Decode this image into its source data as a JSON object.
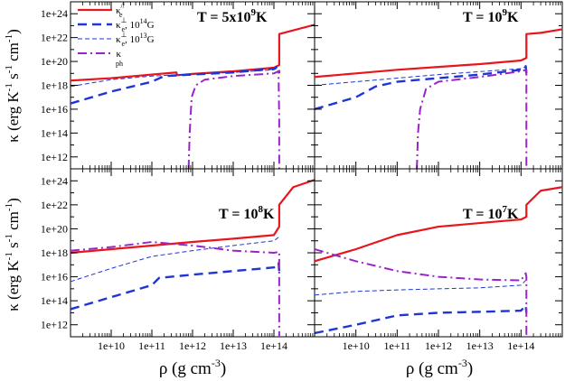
{
  "figure": {
    "ylabel_parts": [
      "κ (erg K",
      "-1",
      " s",
      "-1",
      " cm",
      "-1",
      ")"
    ],
    "xlabel_parts": [
      "ρ (g cm",
      "-3",
      ")"
    ]
  },
  "chart_data": [
    {
      "type": "line",
      "panel": "top-left",
      "title_parts": [
        "T = 5x10",
        "9",
        "K"
      ],
      "xscale": "log",
      "yscale": "log",
      "xlim": [
        1000000000.0,
        1000000000000000.0
      ],
      "ylim": [
        100000000000.0,
        1e+25
      ],
      "x_ticks": [
        "1e+10",
        "1e+11",
        "1e+12",
        "1e+13",
        "1e+14"
      ],
      "y_ticks": [
        "1e+12",
        "1e+14",
        "1e+16",
        "1e+18",
        "1e+20",
        "1e+22",
        "1e+24"
      ],
      "legend": {
        "placement": "top-left",
        "entries": [
          {
            "base": "κ",
            "sub": "e",
            "sup": "//",
            "suffix": "",
            "suffix_sup": "",
            "suffix_end": ""
          },
          {
            "base": "κ",
            "sub": "e",
            "sup": "⊥",
            "suffix": ", 10",
            "suffix_sup": "14",
            "suffix_end": "G"
          },
          {
            "base": "κ",
            "sub": "e",
            "sup": "⊥",
            "suffix": ", 10",
            "suffix_sup": "13",
            "suffix_end": "G"
          },
          {
            "base": "κ",
            "sub": "ph",
            "sup": "",
            "suffix": "",
            "suffix_sup": "",
            "suffix_end": ""
          }
        ]
      },
      "series": [
        {
          "style": "solid-red",
          "x": [
            1000000000.0,
            10000000000.0,
            100000000000.0,
            400000000000.0,
            420000000000.0,
            1000000000000.0,
            10000000000000.0,
            100000000000000.0,
            135000000000000.0,
            135000000000000.0,
            1000000000000000.0
          ],
          "y": [
            2.5e+18,
            4e+18,
            8e+18,
            1.2e+19,
            7e+18,
            9e+18,
            1.5e+19,
            3e+19,
            5e+19,
            2e+22,
            1.2e+23
          ]
        },
        {
          "style": "dashed-blue-thick",
          "x": [
            1000000000.0,
            10000000000.0,
            100000000000.0,
            200000000000.0,
            1000000000000.0,
            10000000000000.0,
            100000000000000.0,
            130000000000000.0,
            135000000000000.0
          ],
          "y": [
            3e+16,
            3e+17,
            2e+18,
            6e+18,
            8e+18,
            1.2e+19,
            2.5e+19,
            4e+19,
            1e+19
          ]
        },
        {
          "style": "dashed-blue-thin",
          "x": [
            1000000000.0,
            10000000000.0,
            100000000000.0,
            1000000000000.0,
            10000000000000.0,
            100000000000000.0,
            130000000000000.0
          ],
          "y": [
            8e+17,
            3e+18,
            6e+18,
            9e+18,
            1.2e+19,
            2e+19,
            3e+19
          ]
        },
        {
          "style": "dashdot-purple",
          "x": [
            800000000000.0,
            850000000000.0,
            950000000000.0,
            1200000000000.0,
            2000000000000.0,
            10000000000000.0,
            100000000000000.0,
            130000000000000.0,
            135000000000000.0,
            135000000000000.0
          ],
          "y": [
            100000000000.0,
            100000000000000.0,
            1e+17,
            1e+18,
            3e+18,
            6e+18,
            1e+19,
            1.5e+19,
            1000000000000000.0,
            100000000000.0
          ]
        }
      ]
    },
    {
      "type": "line",
      "panel": "top-right",
      "title_parts": [
        "T = 10",
        "9",
        "K"
      ],
      "xscale": "log",
      "yscale": "log",
      "xlim": [
        1000000000.0,
        1000000000000000.0
      ],
      "ylim": [
        100000000000.0,
        1e+25
      ],
      "series": [
        {
          "style": "solid-red",
          "x": [
            1000000000.0,
            10000000000.0,
            100000000000.0,
            1000000000000.0,
            10000000000000.0,
            100000000000000.0,
            135000000000000.0,
            135000000000000.0,
            300000000000000.0,
            1000000000000000.0
          ],
          "y": [
            5e+18,
            1e+19,
            2e+19,
            3.5e+19,
            6e+19,
            1.2e+20,
            2e+20,
            2e+22,
            2.5e+22,
            5e+22
          ]
        },
        {
          "style": "dashed-blue-thick",
          "x": [
            1000000000.0,
            10000000000.0,
            30000000000.0,
            100000000000.0,
            1000000000000.0,
            10000000000000.0,
            100000000000000.0,
            130000000000000.0,
            135000000000000.0
          ],
          "y": [
            1e+16,
            1e+17,
            8e+17,
            2e+18,
            4e+18,
            8e+18,
            2e+19,
            4e+19,
            1e+19
          ]
        },
        {
          "style": "dashed-blue-thin",
          "x": [
            1000000000.0,
            10000000000.0,
            100000000000.0,
            1000000000000.0,
            10000000000000.0,
            100000000000000.0,
            130000000000000.0
          ],
          "y": [
            1e+18,
            2e+18,
            4e+18,
            8e+18,
            1.4e+19,
            2.5e+19,
            3.5e+19
          ]
        },
        {
          "style": "dashdot-purple",
          "x": [
            300000000000.0,
            320000000000.0,
            360000000000.0,
            500000000000.0,
            1000000000000.0,
            10000000000000.0,
            100000000000000.0,
            135000000000000.0,
            135000000000000.0
          ],
          "y": [
            100000000000.0,
            100000000000000.0,
            1e+16,
            5e+17,
            2e+18,
            5e+18,
            1.5e+19,
            2e+19,
            100000000000.0
          ]
        }
      ]
    },
    {
      "type": "line",
      "panel": "bottom-left",
      "title_parts": [
        "T = 10",
        "8",
        "K"
      ],
      "xscale": "log",
      "yscale": "log",
      "xlim": [
        1000000000.0,
        1000000000000000.0
      ],
      "ylim": [
        100000000000.0,
        1e+25
      ],
      "series": [
        {
          "style": "solid-red",
          "x": [
            1000000000.0,
            10000000000.0,
            100000000000.0,
            1000000000000.0,
            10000000000000.0,
            100000000000000.0,
            135000000000000.0,
            135000000000000.0,
            300000000000000.0,
            1000000000000000.0
          ],
          "y": [
            1e+18,
            2e+18,
            4e+18,
            8e+18,
            1.5e+19,
            3e+19,
            1.5e+20,
            1e+22,
            3e+23,
            1.2e+24
          ]
        },
        {
          "style": "dashed-blue-thick",
          "x": [
            1000000000.0,
            10000000000.0,
            100000000000.0,
            150000000000.0,
            1000000000000.0,
            10000000000000.0,
            100000000000000.0,
            130000000000000.0,
            135000000000000.0
          ],
          "y": [
            20000000000000.0,
            200000000000000.0,
            2000000000000000.0,
            8000000000000000.0,
            1.5e+16,
            3e+16,
            6e+16,
            1.5e+17,
            3e+16
          ]
        },
        {
          "style": "dashed-blue-thin",
          "x": [
            1000000000.0,
            10000000000.0,
            100000000000.0,
            1000000000000.0,
            10000000000000.0,
            100000000000000.0,
            130000000000000.0
          ],
          "y": [
            4000000000000000.0,
            5e+16,
            5e+17,
            1.5e+18,
            4e+18,
            1e+19,
            2e+19
          ]
        },
        {
          "style": "dashdot-purple",
          "x": [
            1000000000.0,
            10000000000.0,
            100000000000.0,
            1000000000000.0,
            10000000000000.0,
            100000000000000.0,
            135000000000000.0,
            135000000000000.0
          ],
          "y": [
            1.5e+18,
            3e+18,
            8e+18,
            4e+18,
            1.5e+18,
            1e+18,
            1.2e+18,
            100000000000.0
          ]
        }
      ]
    },
    {
      "type": "line",
      "panel": "bottom-right",
      "title_parts": [
        "T = 10",
        "7",
        "K"
      ],
      "xscale": "log",
      "yscale": "log",
      "xlim": [
        1000000000.0,
        1000000000000000.0
      ],
      "ylim": [
        100000000000.0,
        1e+25
      ],
      "series": [
        {
          "style": "solid-red",
          "x": [
            1000000000.0,
            10000000000.0,
            100000000000.0,
            1000000000000.0,
            10000000000000.0,
            100000000000000.0,
            135000000000000.0,
            135000000000000.0,
            300000000000000.0,
            1000000000000000.0
          ],
          "y": [
            2e+17,
            2e+18,
            3e+19,
            1.5e+20,
            3e+20,
            6e+20,
            1e+21,
            1e+22,
            1.5e+23,
            3e+23
          ]
        },
        {
          "style": "dashed-blue-thick",
          "x": [
            1000000000.0,
            10000000000.0,
            100000000000.0,
            1000000000000.0,
            10000000000000.0,
            100000000000000.0,
            130000000000000.0,
            135000000000000.0
          ],
          "y": [
            200000000000.0,
            1000000000000.0,
            6000000000000.0,
            10000000000000.0,
            12000000000000.0,
            15000000000000.0,
            40000000000000.0,
            10000000000000.0
          ]
        },
        {
          "style": "dashed-blue-thin",
          "x": [
            1000000000.0,
            10000000000.0,
            100000000000.0,
            1000000000000.0,
            10000000000000.0,
            100000000000000.0,
            130000000000000.0
          ],
          "y": [
            300000000000000.0,
            600000000000000.0,
            800000000000000.0,
            1000000000000000.0,
            1200000000000000.0,
            2000000000000000.0,
            5000000000000000.0
          ]
        },
        {
          "style": "dashdot-purple",
          "x": [
            1000000000.0,
            10000000000.0,
            100000000000.0,
            1000000000000.0,
            10000000000000.0,
            100000000000000.0,
            130000000000000.0,
            135000000000000.0,
            135000000000000.0
          ],
          "y": [
            2e+18,
            2e+17,
            3e+16,
            1e+16,
            6000000000000000.0,
            5000000000000000.0,
            2e+16,
            1e+16,
            100000000000.0
          ]
        }
      ]
    }
  ]
}
